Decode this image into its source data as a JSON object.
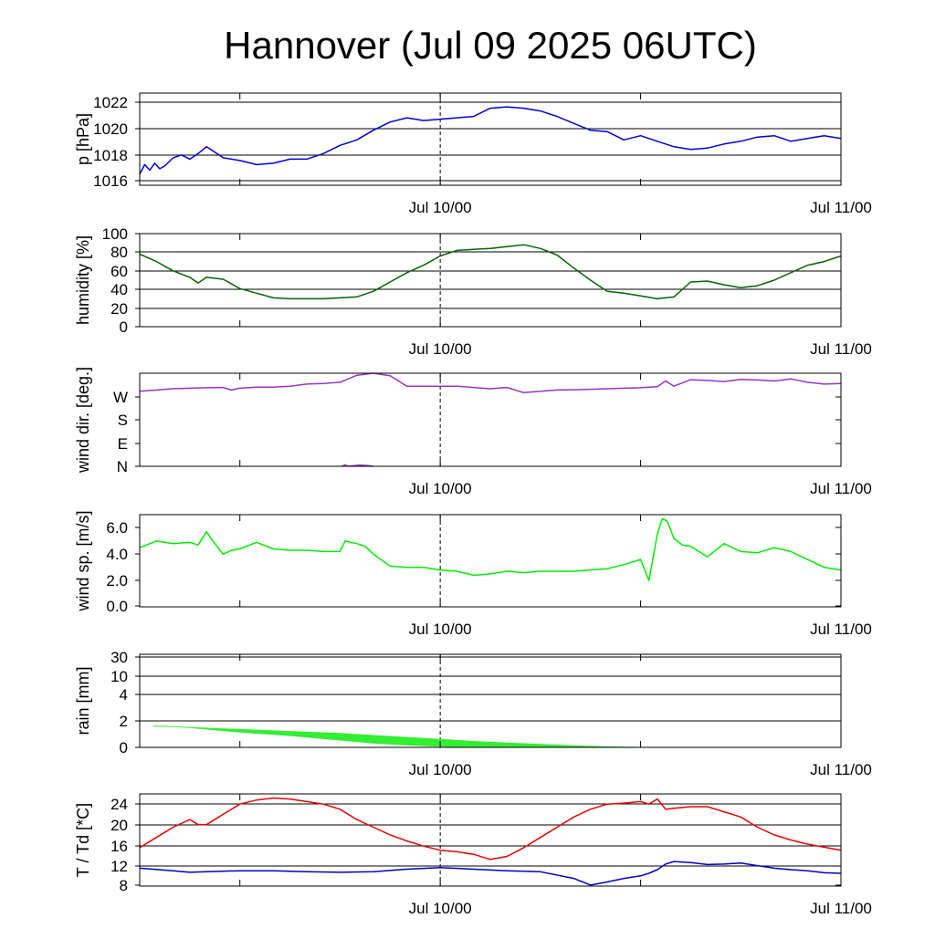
{
  "title": "Hannover (Jul 09 2025 06UTC)",
  "chart_data": [
    {
      "type": "line",
      "ylabel": "p [hPa]",
      "yticks": [
        "1016",
        "1018",
        "1020",
        "1022"
      ],
      "ylim": [
        1016,
        1022.7
      ],
      "x_unit": "hours from Jul 09 06UTC",
      "xlim": [
        0,
        42
      ],
      "xtick_labels": [
        "Jul 10/00",
        "Jul 11/00"
      ],
      "grid": "horizontal",
      "series": [
        {
          "color": "#0000dd",
          "x": [
            0,
            0.3,
            0.6,
            0.9,
            1.2,
            1.5,
            2,
            2.5,
            3,
            3.5,
            4,
            4.5,
            5,
            5.5,
            6,
            7,
            8,
            9,
            10,
            11,
            12,
            13,
            14,
            15,
            16,
            17,
            18,
            19,
            20,
            21,
            22,
            23,
            24,
            25,
            26,
            27,
            28,
            29,
            30,
            31,
            32,
            33,
            34,
            35,
            36,
            37,
            38,
            39,
            40,
            41,
            42
          ],
          "values": [
            1016.8,
            1017.5,
            1017.1,
            1017.6,
            1017.2,
            1017.4,
            1018.0,
            1018.2,
            1017.9,
            1018.3,
            1018.8,
            1018.4,
            1018.0,
            1017.9,
            1017.8,
            1017.5,
            1017.6,
            1017.9,
            1017.9,
            1018.3,
            1018.9,
            1019.3,
            1020.0,
            1020.6,
            1020.9,
            1020.7,
            1020.8,
            1020.9,
            1021.0,
            1021.6,
            1021.7,
            1021.6,
            1021.4,
            1021.0,
            1020.5,
            1020.0,
            1019.9,
            1019.3,
            1019.6,
            1019.2,
            1018.8,
            1018.6,
            1018.7,
            1019.0,
            1019.2,
            1019.5,
            1019.6,
            1019.2,
            1019.4,
            1019.6,
            1019.4
          ]
        }
      ]
    },
    {
      "type": "line",
      "ylabel": "humidity [%]",
      "yticks": [
        "0",
        "20",
        "40",
        "60",
        "80",
        "100"
      ],
      "ylim": [
        0,
        100
      ],
      "x_unit": "hours from Jul 09 06UTC",
      "xlim": [
        0,
        42
      ],
      "xtick_labels": [
        "Jul 10/00",
        "Jul 11/00"
      ],
      "grid": "horizontal",
      "series": [
        {
          "color": "#006600",
          "x": [
            0,
            1,
            2,
            3,
            3.5,
            4,
            5,
            6,
            7,
            8,
            9,
            10,
            11,
            12,
            13,
            14,
            15,
            16,
            17,
            18,
            19,
            20,
            21,
            22,
            23,
            24,
            25,
            26,
            27,
            28,
            29,
            30,
            31,
            32,
            33,
            34,
            35,
            36,
            37,
            38,
            39,
            40,
            41,
            42
          ],
          "values": [
            78,
            70,
            60,
            53,
            47,
            53,
            51,
            41,
            36,
            31,
            30,
            30,
            30,
            31,
            32,
            38,
            48,
            58,
            66,
            76,
            82,
            83,
            84,
            86,
            88,
            84,
            77,
            63,
            50,
            38,
            36,
            33,
            30,
            32,
            48,
            49,
            45,
            42,
            44,
            50,
            58,
            66,
            70,
            76
          ]
        }
      ]
    },
    {
      "type": "line",
      "ylabel": "wind dir. [deg.]",
      "yticks": [
        "N",
        "E",
        "S",
        "W"
      ],
      "ylim": [
        0,
        360
      ],
      "x_unit": "hours from Jul 09 06UTC",
      "xlim": [
        0,
        42
      ],
      "xtick_labels": [
        "Jul 10/00",
        "Jul 11/00"
      ],
      "grid": "none",
      "series": [
        {
          "color": "#9933cc",
          "x": [
            0,
            1,
            2,
            3,
            4,
            5,
            5.5,
            6,
            7,
            8,
            9,
            10,
            11,
            12,
            13,
            14,
            15,
            16,
            17,
            18,
            19,
            20,
            21,
            22,
            23,
            24,
            25,
            26,
            27,
            28,
            29,
            30,
            31,
            31.5,
            32,
            33,
            34,
            35,
            36,
            37,
            38,
            39,
            40,
            41,
            42
          ],
          "values": [
            290,
            295,
            300,
            302,
            304,
            305,
            295,
            302,
            306,
            306,
            310,
            318,
            320,
            325,
            352,
            360,
            350,
            310,
            310,
            310,
            310,
            305,
            300,
            305,
            285,
            290,
            295,
            296,
            298,
            300,
            302,
            304,
            308,
            330,
            310,
            335,
            332,
            328,
            336,
            334,
            330,
            338,
            325,
            318,
            320
          ]
        },
        {
          "color": "#9933cc",
          "x": [
            12.1,
            12.3,
            12.5,
            12.8,
            13.2,
            13.6,
            14.0
          ],
          "values": [
            0,
            6,
            0,
            2,
            5,
            3,
            0
          ]
        }
      ]
    },
    {
      "type": "line",
      "ylabel": "wind sp. [m/s]",
      "yticks": [
        "0.0",
        "2.0",
        "4.0",
        "6.0"
      ],
      "ylim": [
        0,
        7
      ],
      "x_unit": "hours from Jul 09 06UTC",
      "xlim": [
        0,
        42
      ],
      "xtick_labels": [
        "Jul 10/00",
        "Jul 11/00"
      ],
      "grid": "none",
      "series": [
        {
          "color": "#00ee00",
          "x": [
            0,
            1,
            2,
            3,
            3.5,
            4,
            4.5,
            5,
            5.5,
            6,
            7,
            8,
            9,
            10,
            11,
            12,
            12.3,
            13,
            13.5,
            14,
            15,
            16,
            17,
            18,
            19,
            20,
            21,
            22,
            23,
            24,
            25,
            26,
            27,
            28,
            29,
            30,
            30.5,
            31,
            31.3,
            31.6,
            32,
            32.5,
            33,
            34,
            35,
            36,
            37,
            38,
            39,
            40,
            41,
            42
          ],
          "values": [
            4.5,
            5.0,
            4.8,
            4.9,
            4.7,
            5.7,
            4.8,
            4.0,
            4.3,
            4.4,
            4.9,
            4.4,
            4.3,
            4.3,
            4.2,
            4.2,
            5.0,
            4.8,
            4.6,
            4.0,
            3.1,
            3.0,
            3.0,
            2.8,
            2.7,
            2.4,
            2.5,
            2.7,
            2.6,
            2.7,
            2.7,
            2.7,
            2.8,
            2.9,
            3.2,
            3.6,
            2.0,
            5.5,
            6.7,
            6.5,
            5.2,
            4.7,
            4.6,
            3.8,
            4.8,
            4.2,
            4.1,
            4.5,
            4.2,
            3.6,
            3.0,
            2.8
          ]
        }
      ]
    },
    {
      "type": "area",
      "ylabel": "rain [mm]",
      "yticks": [
        "0",
        "2",
        "4",
        "10",
        "30"
      ],
      "ylim": [
        0,
        34
      ],
      "x_unit": "hours from Jul 09 06UTC",
      "xlim": [
        0,
        42
      ],
      "xtick_labels": [
        "Jul 10/00",
        "Jul 11/00"
      ],
      "grid": "horizontal",
      "series": [
        {
          "color": "#33ee33",
          "x": [
            0.8,
            1.5,
            3,
            6,
            9,
            12,
            14,
            16,
            18,
            20,
            22,
            24,
            26,
            28,
            30
          ],
          "upper": [
            1.6,
            1.6,
            1.5,
            1.35,
            1.2,
            1.05,
            0.9,
            0.75,
            0.6,
            0.45,
            0.33,
            0.22,
            0.12,
            0.04,
            0.0
          ],
          "lower": [
            1.6,
            1.6,
            1.5,
            1.15,
            0.9,
            0.55,
            0.32,
            0.18,
            0.08,
            0.03,
            0.01,
            0.0,
            0.0,
            0.0,
            0.0
          ]
        }
      ]
    },
    {
      "type": "line",
      "ylabel": "T / Td [*C]",
      "yticks": [
        "8",
        "12",
        "16",
        "20",
        "24"
      ],
      "ylim": [
        8,
        26
      ],
      "x_unit": "hours from Jul 09 06UTC",
      "xlim": [
        0,
        42
      ],
      "xtick_labels": [
        "Jul 10/00",
        "Jul 11/00"
      ],
      "grid": "horizontal",
      "series": [
        {
          "color": "#ee0000",
          "x": [
            0,
            1,
            2,
            3,
            3.5,
            4,
            5,
            6,
            7,
            8,
            9,
            10,
            11,
            12,
            13,
            14,
            15,
            16,
            17,
            18,
            19,
            20,
            21,
            22,
            23,
            24,
            25,
            26,
            27,
            28,
            29,
            30,
            30.5,
            31,
            31.5,
            32,
            33,
            34,
            35,
            36,
            37,
            38,
            39,
            40,
            41,
            42
          ],
          "values": [
            15.5,
            17.5,
            19.5,
            21.0,
            20.0,
            20.0,
            22.0,
            24.0,
            24.8,
            25.2,
            25.0,
            24.5,
            24.0,
            23.0,
            21.0,
            19.5,
            18.0,
            16.8,
            15.8,
            15.0,
            14.7,
            14.2,
            13.2,
            13.8,
            15.5,
            17.5,
            19.5,
            21.5,
            23.0,
            24.0,
            24.2,
            24.5,
            24.0,
            25.0,
            23.0,
            23.2,
            23.5,
            23.5,
            22.5,
            21.5,
            19.5,
            18.0,
            17.0,
            16.2,
            15.6,
            15.0
          ]
        },
        {
          "color": "#0000cc",
          "x": [
            0,
            2,
            3,
            4,
            6,
            8,
            10,
            12,
            14,
            16,
            18,
            20,
            22,
            24,
            26,
            27,
            28,
            29,
            30,
            30.5,
            31,
            31.5,
            32,
            33,
            34,
            35,
            36,
            37,
            38,
            39,
            40,
            41,
            42
          ],
          "values": [
            11.5,
            11.0,
            10.7,
            10.8,
            11.0,
            11.0,
            10.8,
            10.7,
            10.8,
            11.3,
            11.6,
            11.3,
            11.0,
            10.8,
            9.5,
            8.2,
            8.8,
            9.5,
            10.0,
            10.5,
            11.2,
            12.3,
            12.8,
            12.6,
            12.2,
            12.3,
            12.5,
            12.0,
            11.5,
            11.2,
            11.0,
            10.6,
            10.5
          ]
        }
      ]
    }
  ]
}
